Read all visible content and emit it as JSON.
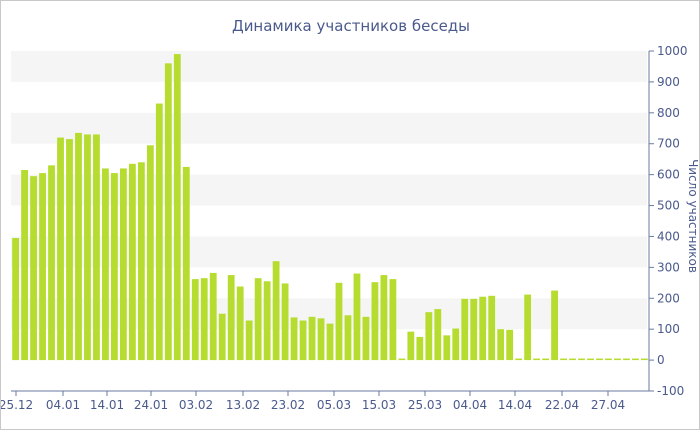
{
  "chart_data": {
    "type": "bar",
    "title": "Динамика участников беседы",
    "ylabel": "Число участников",
    "xlabel": "",
    "ylim": [
      -100,
      1000
    ],
    "yticks": [
      -100,
      0,
      100,
      200,
      300,
      400,
      500,
      600,
      700,
      800,
      900,
      1000
    ],
    "grid": "alternating horizontal bands",
    "y_axis_position": "right",
    "bar_color": "#b5dc2e",
    "band_color": "#f5f5f5",
    "text_color": "#4a5a8c",
    "x_tick_labels": [
      "25.12",
      "04.01",
      "14.01",
      "24.01",
      "03.02",
      "13.02",
      "23.02",
      "05.03",
      "15.03",
      "25.03",
      "04.04",
      "14.04",
      "22.04",
      "27.04"
    ],
    "values": [
      395,
      615,
      595,
      605,
      630,
      720,
      715,
      735,
      730,
      730,
      620,
      605,
      620,
      635,
      640,
      695,
      830,
      960,
      990,
      625,
      262,
      265,
      282,
      150,
      275,
      238,
      128,
      265,
      255,
      320,
      248,
      138,
      128,
      140,
      135,
      118,
      250,
      145,
      280,
      140,
      252,
      275,
      262,
      5,
      92,
      75,
      155,
      165,
      80,
      102,
      198,
      198,
      205,
      208,
      100,
      98,
      5,
      212,
      5,
      5,
      225,
      5,
      5,
      5,
      5,
      5,
      5,
      5,
      5,
      5,
      5
    ]
  }
}
